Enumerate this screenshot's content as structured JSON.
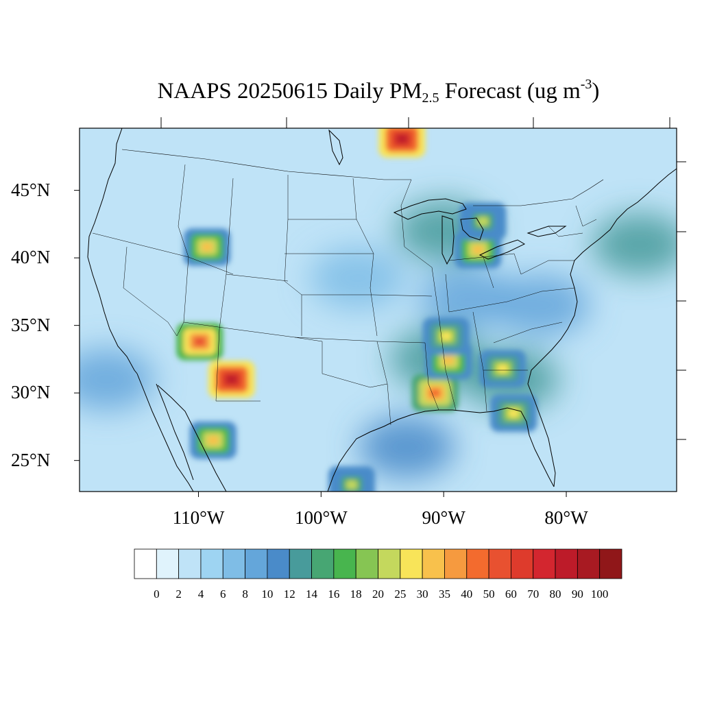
{
  "title": {
    "prefix": "NAAPS 20250615 Daily PM",
    "subscript": "2.5",
    "middle": " Forecast (ug m",
    "superscript": "-3",
    "suffix": ")"
  },
  "map": {
    "lon_range": [
      -119.7,
      -71.0
    ],
    "lat_range": [
      22.7,
      49.6
    ],
    "lat_labels": [
      "25°N",
      "30°N",
      "35°N",
      "40°N",
      "45°N"
    ],
    "lat_values": [
      25,
      30,
      35,
      40,
      45
    ],
    "lon_labels": [
      "110°W",
      "100°W",
      "90°W",
      "80°W"
    ],
    "lon_values": [
      -110,
      -100,
      -90,
      -80
    ],
    "background_color": "#bfe3f7",
    "hotspots": [
      {
        "lon": -109.3,
        "lat": 40.8,
        "peak": 30
      },
      {
        "lon": -109.9,
        "lat": 33.8,
        "peak": 50
      },
      {
        "lon": -107.3,
        "lat": 31.0,
        "peak": 80
      },
      {
        "lon": -108.8,
        "lat": 26.5,
        "peak": 30
      },
      {
        "lon": -93.4,
        "lat": 48.8,
        "peak": 80
      },
      {
        "lon": -90.7,
        "lat": 30.0,
        "peak": 45
      },
      {
        "lon": -89.6,
        "lat": 32.4,
        "peak": 30
      },
      {
        "lon": -85.2,
        "lat": 31.8,
        "peak": 25
      },
      {
        "lon": -84.3,
        "lat": 28.5,
        "peak": 25
      },
      {
        "lon": -87.2,
        "lat": 40.6,
        "peak": 30
      },
      {
        "lon": -86.8,
        "lat": 42.7,
        "peak": 20
      },
      {
        "lon": -89.8,
        "lat": 34.2,
        "peak": 25
      },
      {
        "lon": -97.5,
        "lat": 23.2,
        "peak": 20
      }
    ],
    "plumes": [
      {
        "lon": -74.0,
        "lat": 41.0,
        "peak": 13
      },
      {
        "lon": -90.0,
        "lat": 42.0,
        "peak": 12
      },
      {
        "lon": -90.5,
        "lat": 32.5,
        "peak": 12
      },
      {
        "lon": -84.5,
        "lat": 31.0,
        "peak": 12
      },
      {
        "lon": -93.0,
        "lat": 26.0,
        "peak": 10
      },
      {
        "lon": -88.0,
        "lat": 37.0,
        "peak": 9
      },
      {
        "lon": -82.0,
        "lat": 36.5,
        "peak": 9
      },
      {
        "lon": -117.5,
        "lat": 31.0,
        "peak": 9
      },
      {
        "lon": -97.0,
        "lat": 38.5,
        "peak": 7
      }
    ]
  },
  "colorbar": {
    "labels": [
      "0",
      "2",
      "4",
      "6",
      "8",
      "10",
      "12",
      "14",
      "16",
      "18",
      "20",
      "25",
      "30",
      "35",
      "40",
      "50",
      "60",
      "70",
      "80",
      "90",
      "100"
    ],
    "colors": [
      "#ffffff",
      "#e0f3fc",
      "#bfe3f7",
      "#9ed4f2",
      "#7fbde6",
      "#64a6da",
      "#4a8bc9",
      "#489b9b",
      "#47a673",
      "#48b54e",
      "#86c553",
      "#c4d85d",
      "#f8e459",
      "#f8c14c",
      "#f69a3f",
      "#f36b2e",
      "#e85130",
      "#de3b2c",
      "#d3262f",
      "#bd1b29",
      "#a81a22",
      "#901719"
    ]
  }
}
